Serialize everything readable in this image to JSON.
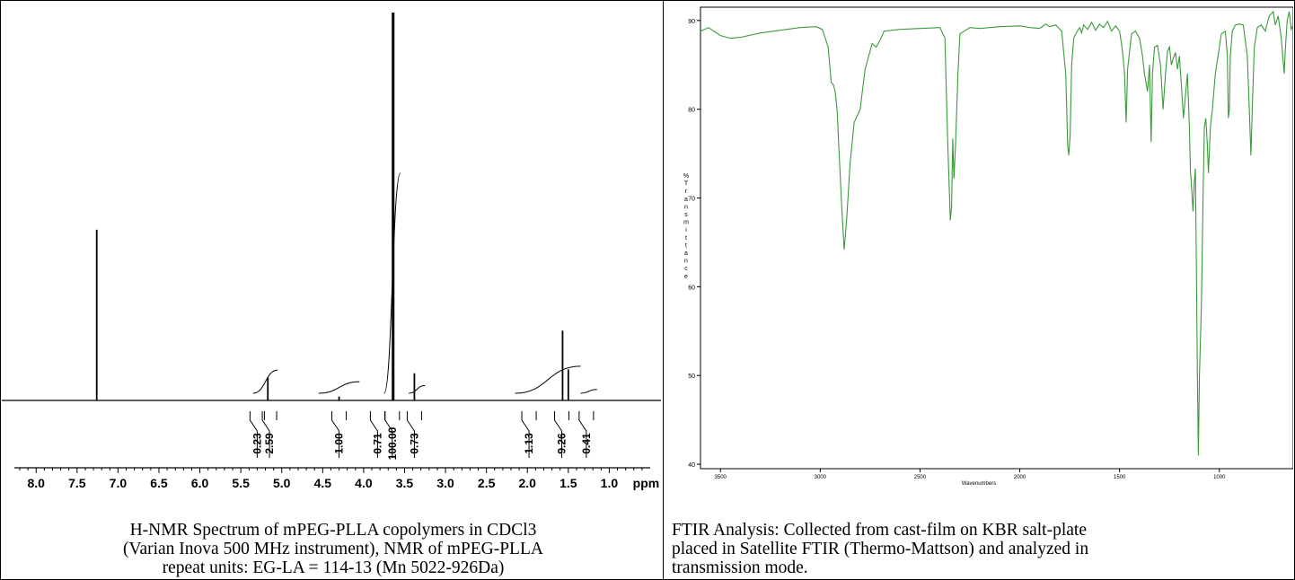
{
  "nmr": {
    "caption_lines": [
      "H-NMR Spectrum of mPEG-PLLA copolymers in CDCl3",
      "(Varian Inova 500 MHz instrument), NMR of mPEG-PLLA",
      "repeat units: EG-LA = 114-13 (Mn 5022-926Da)"
    ]
  },
  "ftir": {
    "caption_lines": [
      "FTIR Analysis: Collected from cast-film on KBR salt-plate",
      "placed in Satellite FTIR (Thermo-Mattson) and analyzed in",
      "transmission mode."
    ]
  },
  "chart_data": [
    {
      "type": "line",
      "title": "",
      "xlabel": "ppm",
      "ylabel": "",
      "x_reversed": true,
      "xlim": [
        8.2,
        0.5
      ],
      "ylim": [
        0,
        100
      ],
      "grid": false,
      "xticks": [
        "8.0",
        "7.5",
        "7.0",
        "6.5",
        "6.0",
        "5.5",
        "5.0",
        "4.5",
        "4.0",
        "3.5",
        "3.0",
        "2.5",
        "2.0",
        "1.5",
        "1.0"
      ],
      "peaks": [
        {
          "ppm": 7.26,
          "height": 44
        },
        {
          "ppm": 5.17,
          "height": 6
        },
        {
          "ppm": 4.3,
          "height": 1
        },
        {
          "ppm": 3.64,
          "height": 100
        },
        {
          "ppm": 3.38,
          "height": 7
        },
        {
          "ppm": 1.57,
          "height": 18
        },
        {
          "ppm": 1.5,
          "height": 8
        }
      ],
      "integrals": [
        {
          "value": "0.23",
          "ppm": 5.3
        },
        {
          "value": "2.59",
          "ppm": 5.15
        },
        {
          "value": "1.00",
          "ppm": 4.3
        },
        {
          "value": "0.71",
          "ppm": 3.83
        },
        {
          "value": "100.00",
          "ppm": 3.65
        },
        {
          "value": "0.73",
          "ppm": 3.38
        },
        {
          "value": "1.13",
          "ppm": 1.98
        },
        {
          "value": "9.26",
          "ppm": 1.58
        },
        {
          "value": "0.41",
          "ppm": 1.28
        }
      ]
    },
    {
      "type": "line",
      "title": "",
      "xlabel": "Wavenumbers",
      "ylabel": "% Transmittance",
      "x_reversed": true,
      "xlim": [
        3600,
        630
      ],
      "ylim": [
        39.5,
        91.5
      ],
      "yticks": [
        40,
        50,
        60,
        70,
        80,
        90
      ],
      "xticks": [
        3500,
        3000,
        2500,
        2000,
        1500,
        1000
      ],
      "grid": false,
      "color": "#3a9a3a",
      "points": [
        [
          3600,
          88.8
        ],
        [
          3560,
          89.2
        ],
        [
          3500,
          88.3
        ],
        [
          3450,
          88.0
        ],
        [
          3400,
          88.1
        ],
        [
          3300,
          88.6
        ],
        [
          3200,
          88.9
        ],
        [
          3100,
          89.2
        ],
        [
          3020,
          89.3
        ],
        [
          2990,
          89.0
        ],
        [
          2960,
          87.0
        ],
        [
          2945,
          83.0
        ],
        [
          2935,
          82.8
        ],
        [
          2925,
          82.0
        ],
        [
          2915,
          79.8
        ],
        [
          2905,
          75.0
        ],
        [
          2890,
          68.0
        ],
        [
          2880,
          64.2
        ],
        [
          2868,
          67.5
        ],
        [
          2850,
          74.0
        ],
        [
          2830,
          78.5
        ],
        [
          2800,
          80.0
        ],
        [
          2775,
          84.5
        ],
        [
          2740,
          87.4
        ],
        [
          2720,
          87.0
        ],
        [
          2700,
          87.8
        ],
        [
          2680,
          88.8
        ],
        [
          2600,
          89.0
        ],
        [
          2500,
          89.1
        ],
        [
          2400,
          89.2
        ],
        [
          2375,
          88.0
        ],
        [
          2362,
          77.0
        ],
        [
          2355,
          72.0
        ],
        [
          2348,
          67.5
        ],
        [
          2342,
          69.0
        ],
        [
          2336,
          76.7
        ],
        [
          2330,
          72.2
        ],
        [
          2322,
          76.0
        ],
        [
          2310,
          84.0
        ],
        [
          2300,
          88.5
        ],
        [
          2250,
          89.2
        ],
        [
          2200,
          89.1
        ],
        [
          2100,
          89.3
        ],
        [
          2000,
          89.4
        ],
        [
          1950,
          89.2
        ],
        [
          1900,
          89.1
        ],
        [
          1870,
          89.6
        ],
        [
          1850,
          89.3
        ],
        [
          1820,
          89.5
        ],
        [
          1790,
          88.8
        ],
        [
          1770,
          84.0
        ],
        [
          1760,
          76.0
        ],
        [
          1755,
          74.8
        ],
        [
          1748,
          77.0
        ],
        [
          1740,
          85.0
        ],
        [
          1730,
          88.0
        ],
        [
          1720,
          88.5
        ],
        [
          1700,
          89.2
        ],
        [
          1690,
          88.6
        ],
        [
          1680,
          89.5
        ],
        [
          1660,
          89.0
        ],
        [
          1640,
          89.8
        ],
        [
          1620,
          88.9
        ],
        [
          1600,
          89.6
        ],
        [
          1580,
          89.2
        ],
        [
          1560,
          89.9
        ],
        [
          1540,
          88.8
        ],
        [
          1520,
          89.4
        ],
        [
          1500,
          88.8
        ],
        [
          1485,
          86.5
        ],
        [
          1475,
          84.0
        ],
        [
          1467,
          78.5
        ],
        [
          1460,
          84.5
        ],
        [
          1450,
          86.5
        ],
        [
          1440,
          88.5
        ],
        [
          1420,
          88.8
        ],
        [
          1400,
          88.0
        ],
        [
          1385,
          86.0
        ],
        [
          1375,
          84.0
        ],
        [
          1360,
          82.0
        ],
        [
          1350,
          85.0
        ],
        [
          1342,
          76.3
        ],
        [
          1335,
          84.0
        ],
        [
          1325,
          87.0
        ],
        [
          1310,
          87.2
        ],
        [
          1295,
          85.0
        ],
        [
          1282,
          80.0
        ],
        [
          1270,
          84.0
        ],
        [
          1260,
          86.5
        ],
        [
          1250,
          87.0
        ],
        [
          1240,
          85.0
        ],
        [
          1230,
          85.8
        ],
        [
          1220,
          86.4
        ],
        [
          1210,
          84.5
        ],
        [
          1200,
          86.0
        ],
        [
          1190,
          82.5
        ],
        [
          1180,
          79.0
        ],
        [
          1170,
          81.5
        ],
        [
          1160,
          84.0
        ],
        [
          1150,
          78.0
        ],
        [
          1145,
          73.0
        ],
        [
          1140,
          71.5
        ],
        [
          1132,
          68.5
        ],
        [
          1125,
          72.0
        ],
        [
          1120,
          73.3
        ],
        [
          1114,
          60.0
        ],
        [
          1110,
          50.0
        ],
        [
          1105,
          41.0
        ],
        [
          1100,
          50.0
        ],
        [
          1090,
          58.0
        ],
        [
          1082,
          70.0
        ],
        [
          1075,
          78.0
        ],
        [
          1068,
          79.0
        ],
        [
          1060,
          76.0
        ],
        [
          1055,
          72.8
        ],
        [
          1045,
          78.0
        ],
        [
          1035,
          80.0
        ],
        [
          1020,
          84.0
        ],
        [
          1000,
          87.0
        ],
        [
          990,
          88.5
        ],
        [
          970,
          88.8
        ],
        [
          960,
          86.0
        ],
        [
          955,
          79.0
        ],
        [
          950,
          80.0
        ],
        [
          945,
          86.0
        ],
        [
          935,
          88.8
        ],
        [
          920,
          89.5
        ],
        [
          900,
          89.6
        ],
        [
          880,
          89.5
        ],
        [
          860,
          86.0
        ],
        [
          850,
          80.0
        ],
        [
          842,
          74.8
        ],
        [
          835,
          80.0
        ],
        [
          825,
          87.0
        ],
        [
          810,
          89.2
        ],
        [
          790,
          89.5
        ],
        [
          770,
          88.8
        ],
        [
          750,
          90.5
        ],
        [
          730,
          91.0
        ],
        [
          720,
          89.5
        ],
        [
          705,
          90.5
        ],
        [
          690,
          88.0
        ],
        [
          675,
          84.0
        ],
        [
          670,
          86.5
        ],
        [
          660,
          90.0
        ],
        [
          650,
          91.0
        ],
        [
          640,
          89.0
        ],
        [
          630,
          89.5
        ]
      ]
    }
  ]
}
